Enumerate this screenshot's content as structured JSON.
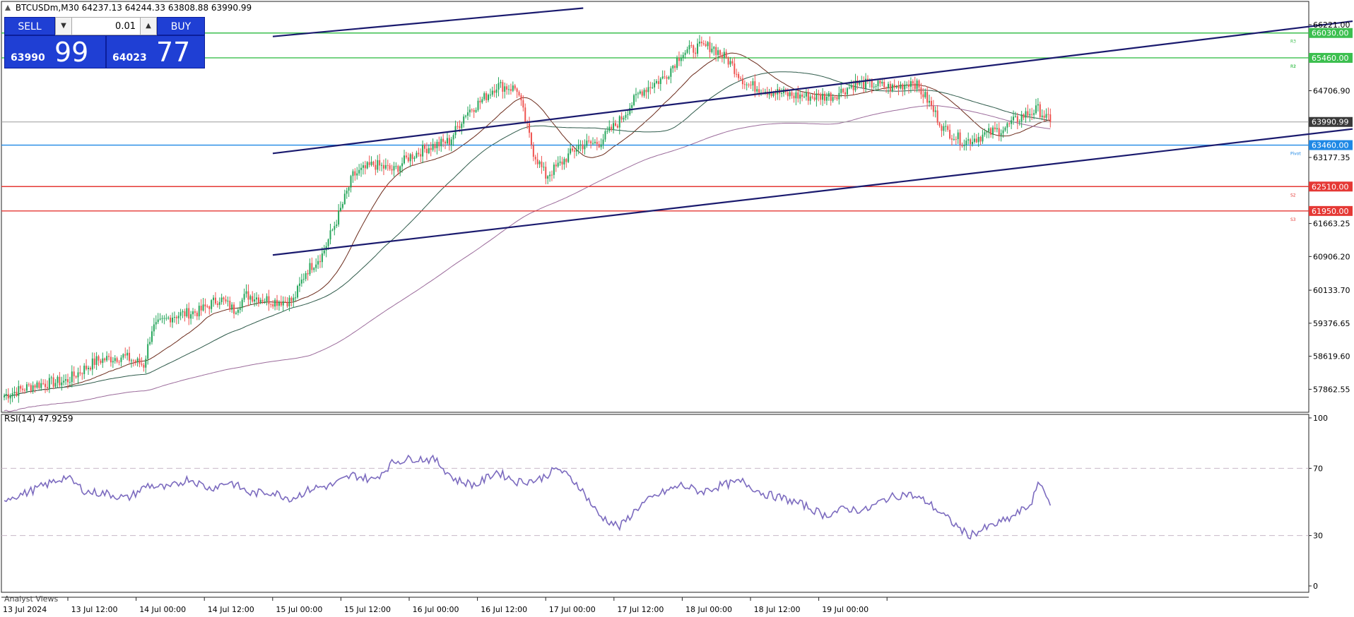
{
  "symbol": {
    "name": "BTCUSDm,M30",
    "ohlc": "64237.13 64244.33 63808.88 63990.99"
  },
  "trade_panel": {
    "sell_label": "SELL",
    "buy_label": "BUY",
    "lot": "0.01",
    "sell_small": "63990",
    "sell_big": "99",
    "buy_small": "64023",
    "buy_big": "77"
  },
  "indicator": {
    "label": "RSI(14) 47.9259"
  },
  "bottom_tab": "Analyst Views",
  "colors": {
    "bull": "#26a65b",
    "bear": "#ef5350",
    "support": "#e53935",
    "resistance": "#3cbf4f",
    "pivot": "#1e88e5",
    "current": "#3a3a3a",
    "trendline": "#1a1a6e",
    "rsi": "#7c6bbf",
    "ma_fast": "#6b2a1a",
    "ma_mid": "#2e5a4a",
    "ma_slow": "#9b6b9b"
  },
  "chart_data": [
    {
      "type": "candlestick",
      "symbol": "BTCUSDm",
      "timeframe": "M30",
      "ylim": [
        57400,
        66560
      ],
      "y_ticks": [
        "66221.00",
        "64706.90",
        "63177.35",
        "61663.25",
        "60906.20",
        "60133.70",
        "59376.65",
        "58619.60",
        "57862.55"
      ],
      "x_ticks": [
        "13 Jul 2024",
        "13 Jul 12:00",
        "14 Jul 00:00",
        "14 Jul 12:00",
        "15 Jul 00:00",
        "15 Jul 12:00",
        "16 Jul 00:00",
        "16 Jul 12:00",
        "17 Jul 00:00",
        "17 Jul 12:00",
        "18 Jul 00:00",
        "18 Jul 12:00",
        "19 Jul 00:00"
      ],
      "keypoints": [
        [
          0,
          57720
        ],
        [
          15,
          57970
        ],
        [
          30,
          58050
        ],
        [
          45,
          58520
        ],
        [
          58,
          58620
        ],
        [
          68,
          58420
        ],
        [
          72,
          59250
        ],
        [
          82,
          59550
        ],
        [
          95,
          59650
        ],
        [
          105,
          59950
        ],
        [
          112,
          59680
        ],
        [
          118,
          60020
        ],
        [
          132,
          59880
        ],
        [
          141,
          59900
        ],
        [
          147,
          60560
        ],
        [
          155,
          60950
        ],
        [
          163,
          61850
        ],
        [
          170,
          62760
        ],
        [
          180,
          63020
        ],
        [
          190,
          62880
        ],
        [
          197,
          63180
        ],
        [
          207,
          63420
        ],
        [
          217,
          63550
        ],
        [
          225,
          64200
        ],
        [
          232,
          64450
        ],
        [
          240,
          64830
        ],
        [
          250,
          64750
        ],
        [
          258,
          63300
        ],
        [
          264,
          62750
        ],
        [
          270,
          62980
        ],
        [
          280,
          63450
        ],
        [
          290,
          63520
        ],
        [
          300,
          64020
        ],
        [
          310,
          64680
        ],
        [
          322,
          65020
        ],
        [
          330,
          65560
        ],
        [
          338,
          65700
        ],
        [
          345,
          65720
        ],
        [
          353,
          65400
        ],
        [
          362,
          64850
        ],
        [
          373,
          64700
        ],
        [
          384,
          64600
        ],
        [
          395,
          64570
        ],
        [
          404,
          64590
        ],
        [
          415,
          64870
        ],
        [
          424,
          64850
        ],
        [
          434,
          64760
        ],
        [
          443,
          64940
        ],
        [
          450,
          64500
        ],
        [
          458,
          63830
        ],
        [
          468,
          63530
        ],
        [
          478,
          63700
        ],
        [
          488,
          63860
        ],
        [
          496,
          64120
        ],
        [
          504,
          64280
        ],
        [
          510,
          63990
        ]
      ],
      "candle_count": 511,
      "last_close": "63990.99",
      "moving_averages": [
        {
          "period": "fast",
          "color": "#6b2a1a"
        },
        {
          "period": "mid",
          "color": "#2e5a4a"
        },
        {
          "period": "slow",
          "color": "#9b6b9b"
        }
      ],
      "levels": [
        {
          "value": "66030.00",
          "kind": "resistance",
          "tag": "R3"
        },
        {
          "value": "65460.00",
          "kind": "resistance",
          "tag": "R2"
        },
        {
          "value": "63460.00",
          "kind": "pivot",
          "tag": "Pivot"
        },
        {
          "value": "62510.00",
          "kind": "support",
          "tag": "S2"
        },
        {
          "value": "61950.00",
          "kind": "support",
          "tag": "S3"
        }
      ],
      "r1_tag": "R1",
      "current_price": "63990.99",
      "trendlines": [
        {
          "x1": 0.2,
          "y1": 65950,
          "x2": 0.43,
          "y2": 66600
        },
        {
          "x1": 0.2,
          "y1": 63270,
          "x2": 1.0,
          "y2": 66300
        },
        {
          "x1": 0.2,
          "y1": 60940,
          "x2": 1.0,
          "y2": 63830
        }
      ]
    },
    {
      "type": "line",
      "name": "RSI(14)",
      "ylim": [
        0,
        100
      ],
      "y_ticks": [
        "100",
        "70",
        "30",
        "0"
      ],
      "levels": [
        70,
        30
      ],
      "keypoints": [
        [
          0,
          52
        ],
        [
          10,
          55
        ],
        [
          20,
          60
        ],
        [
          30,
          65
        ],
        [
          40,
          56
        ],
        [
          50,
          55
        ],
        [
          60,
          52
        ],
        [
          70,
          60
        ],
        [
          80,
          58
        ],
        [
          90,
          64
        ],
        [
          100,
          58
        ],
        [
          110,
          62
        ],
        [
          120,
          55
        ],
        [
          130,
          56
        ],
        [
          140,
          52
        ],
        [
          150,
          58
        ],
        [
          160,
          60
        ],
        [
          170,
          66
        ],
        [
          180,
          63
        ],
        [
          190,
          74
        ],
        [
          200,
          76
        ],
        [
          210,
          75
        ],
        [
          220,
          63
        ],
        [
          230,
          60
        ],
        [
          240,
          68
        ],
        [
          250,
          62
        ],
        [
          260,
          63
        ],
        [
          270,
          70
        ],
        [
          280,
          60
        ],
        [
          290,
          42
        ],
        [
          300,
          35
        ],
        [
          310,
          48
        ],
        [
          320,
          55
        ],
        [
          330,
          60
        ],
        [
          340,
          56
        ],
        [
          350,
          60
        ],
        [
          360,
          62
        ],
        [
          370,
          55
        ],
        [
          380,
          52
        ],
        [
          390,
          48
        ],
        [
          400,
          42
        ],
        [
          410,
          46
        ],
        [
          420,
          45
        ],
        [
          430,
          52
        ],
        [
          440,
          55
        ],
        [
          450,
          50
        ],
        [
          460,
          40
        ],
        [
          470,
          30
        ],
        [
          480,
          35
        ],
        [
          490,
          40
        ],
        [
          500,
          48
        ],
        [
          505,
          62
        ],
        [
          510,
          47.9
        ]
      ],
      "last_value": "47.9259"
    }
  ]
}
